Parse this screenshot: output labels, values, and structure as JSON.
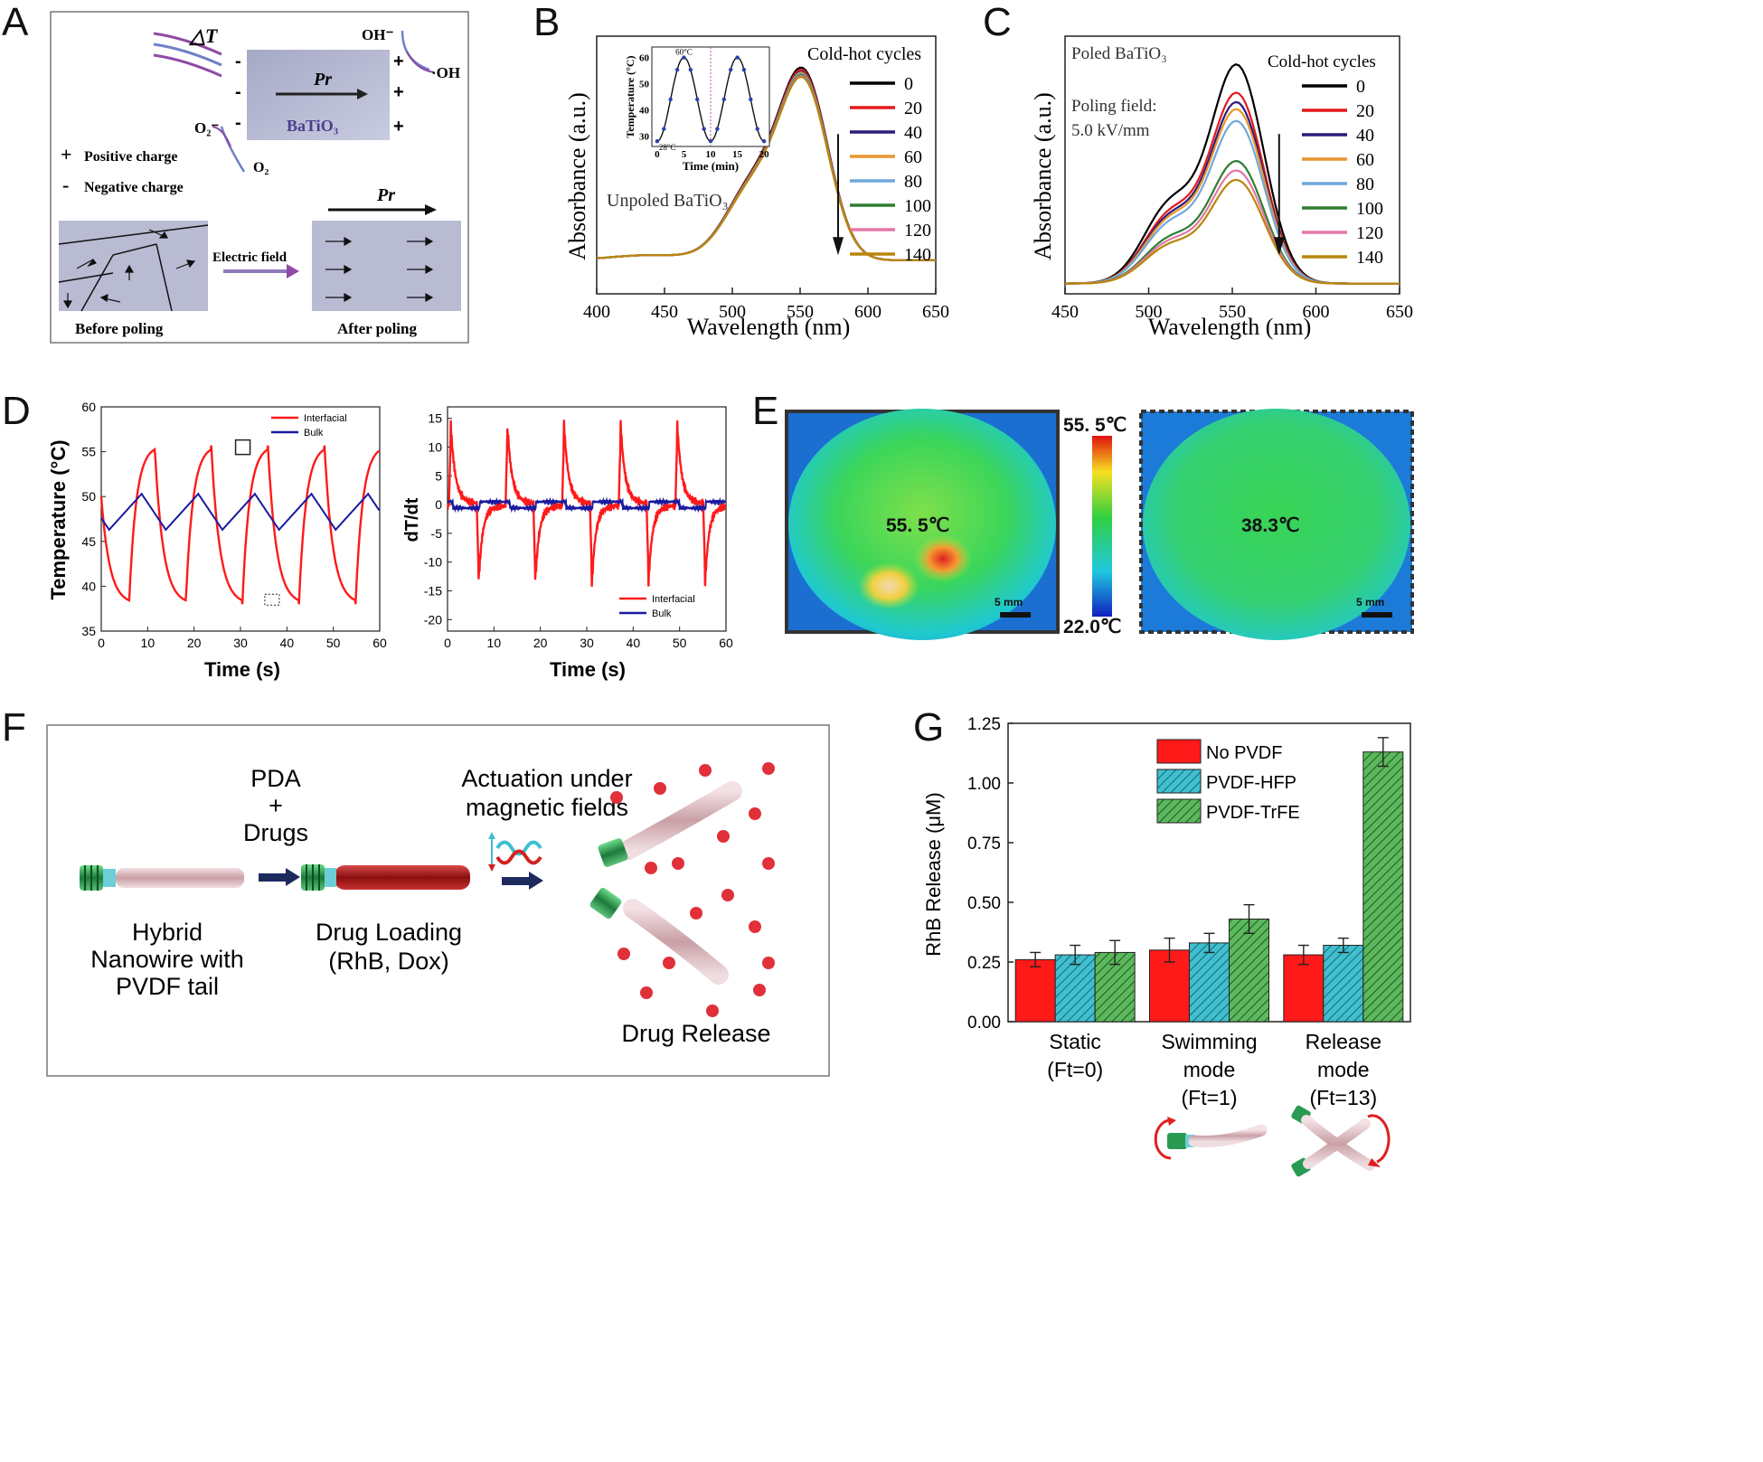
{
  "panel_letters": [
    "A",
    "B",
    "C",
    "D",
    "E",
    "F",
    "G"
  ],
  "panel_a": {
    "delta_t": "△T",
    "pr": "Pr",
    "material": "BaTiO₃",
    "oh_minus": "OH⁻",
    "oh_radical": "·OH",
    "o2_minus": "O₂⁻",
    "o2": "O₂",
    "legend_positive": "Positive charge",
    "legend_negative": "Negative charge",
    "electric_field": "Electric field",
    "before": "Before poling",
    "after": "After poling"
  },
  "colors": {
    "c0": "#000000",
    "c20": "#e31a1c",
    "c40": "#2b1a7a",
    "c60": "#e8962e",
    "c80": "#6fa8dc",
    "c100": "#2e7d32",
    "c120": "#e377a8",
    "c140": "#b8860b",
    "red": "#ff1a1a",
    "navy": "#1a1aa0",
    "teal": "#3fbfcf",
    "green": "#5cb85c"
  },
  "chart_data": [
    {
      "panel": "B",
      "type": "line",
      "xlabel": "Wavelength (nm)",
      "ylabel": "Absorbance (a.u.)",
      "xlim": [
        400,
        650
      ],
      "xticks": [
        400,
        450,
        500,
        550,
        600,
        650
      ],
      "annotation": "Unpoled BaTiO₃",
      "legend_title": "Cold-hot cycles",
      "series": [
        {
          "name": "0",
          "peak": 0.93
        },
        {
          "name": "20",
          "peak": 0.92
        },
        {
          "name": "40",
          "peak": 0.91
        },
        {
          "name": "60",
          "peak": 0.905
        },
        {
          "name": "80",
          "peak": 0.9
        },
        {
          "name": "100",
          "peak": 0.895
        },
        {
          "name": "120",
          "peak": 0.89
        },
        {
          "name": "140",
          "peak": 0.885
        }
      ],
      "inset": {
        "type": "line",
        "xlabel": "Time (min)",
        "ylabel": "Temperature (°C)",
        "xticks": [
          0,
          5,
          10,
          15,
          20
        ],
        "yticks": [
          30,
          40,
          50,
          60
        ],
        "xlim": [
          -1,
          21
        ],
        "ylim": [
          26,
          64
        ],
        "labels": [
          "60°C",
          "28°C"
        ],
        "x": [
          0,
          1.25,
          2.5,
          3.75,
          5,
          6.25,
          7.5,
          8.75,
          10,
          11.25,
          12.5,
          13.75,
          15,
          16.25,
          17.5,
          18.75,
          20
        ],
        "y": [
          28,
          32.7,
          44,
          55.3,
          60,
          55.3,
          44,
          32.7,
          28,
          32.7,
          44,
          55.3,
          60,
          55.3,
          44,
          32.7,
          28
        ]
      }
    },
    {
      "panel": "C",
      "type": "line",
      "xlabel": "Wavelength (nm)",
      "ylabel": "Absorbance (a.u.)",
      "xlim": [
        450,
        650
      ],
      "xticks": [
        450,
        500,
        550,
        600,
        650
      ],
      "annotation": [
        "Poled BaTiO₃",
        "Poling field:",
        "5.0 kV/mm"
      ],
      "legend_title": "Cold-hot cycles",
      "series": [
        {
          "name": "0",
          "peak": 0.93
        },
        {
          "name": "20",
          "peak": 0.81
        },
        {
          "name": "40",
          "peak": 0.77
        },
        {
          "name": "60",
          "peak": 0.74
        },
        {
          "name": "80",
          "peak": 0.69
        },
        {
          "name": "100",
          "peak": 0.52
        },
        {
          "name": "120",
          "peak": 0.48
        },
        {
          "name": "140",
          "peak": 0.44
        }
      ]
    },
    {
      "panel": "D-left",
      "type": "line",
      "xlabel": "Time (s)",
      "ylabel": "Temperature (°C)",
      "xlim": [
        0,
        60
      ],
      "ylim": [
        35,
        60
      ],
      "xticks": [
        0,
        10,
        20,
        30,
        40,
        50,
        60
      ],
      "yticks": [
        35,
        40,
        45,
        50,
        55,
        60
      ],
      "series": [
        {
          "name": "Interfacial",
          "min": 38,
          "max": 55.7,
          "period": 12.2
        },
        {
          "name": "Bulk",
          "min": 46.3,
          "max": 50.3,
          "period": 12.2
        }
      ]
    },
    {
      "panel": "D-right",
      "type": "line",
      "xlabel": "Time (s)",
      "ylabel": "dT/dt",
      "xlim": [
        0,
        60
      ],
      "ylim": [
        -22,
        17
      ],
      "xticks": [
        0,
        10,
        20,
        30,
        40,
        50,
        60
      ],
      "yticks": [
        -20,
        -15,
        -10,
        -5,
        0,
        5,
        10,
        15
      ],
      "series": [
        {
          "name": "Interfacial",
          "peak": 12.5,
          "trough": -12.5
        },
        {
          "name": "Bulk",
          "peak": 1.2,
          "trough": -1.5
        }
      ]
    },
    {
      "panel": "G",
      "type": "bar",
      "ylabel": "RhB Release (μM)",
      "ylim": [
        0,
        1.25
      ],
      "yticks": [
        "0.00",
        "0.25",
        "0.50",
        "0.75",
        "1.00",
        "1.25"
      ],
      "categories": [
        [
          "Static",
          "(Ft=0)"
        ],
        [
          "Swimming",
          "mode",
          "(Ft=1)"
        ],
        [
          "Release",
          "mode",
          "(Ft=13)"
        ]
      ],
      "series": [
        {
          "name": "No PVDF",
          "values": [
            0.26,
            0.3,
            0.28
          ],
          "errors": [
            0.03,
            0.05,
            0.04
          ]
        },
        {
          "name": "PVDF-HFP",
          "values": [
            0.28,
            0.33,
            0.32
          ],
          "errors": [
            0.04,
            0.04,
            0.03
          ]
        },
        {
          "name": "PVDF-TrFE",
          "values": [
            0.29,
            0.43,
            1.13
          ],
          "errors": [
            0.05,
            0.06,
            0.06
          ]
        }
      ]
    }
  ],
  "panel_e": {
    "left_temp": "55. 5℃",
    "right_temp": "38.3℃",
    "scale_max": "55. 5℃",
    "scale_min": "22.0℃",
    "scalebar_left": "5 mm",
    "scalebar_right": "5 mm"
  },
  "panel_f": {
    "step1_top": "PDA",
    "step1_plus": "+",
    "step1_bottom": "Drugs",
    "step2_line1": "Actuation under",
    "step2_line2": "magnetic fields",
    "label1_line1": "Hybrid",
    "label1_line2": "Nanowire with",
    "label1_line3": "PVDF tail",
    "label2_line1": "Drug Loading",
    "label2_line2": "(RhB, Dox)",
    "label3": "Drug Release"
  }
}
